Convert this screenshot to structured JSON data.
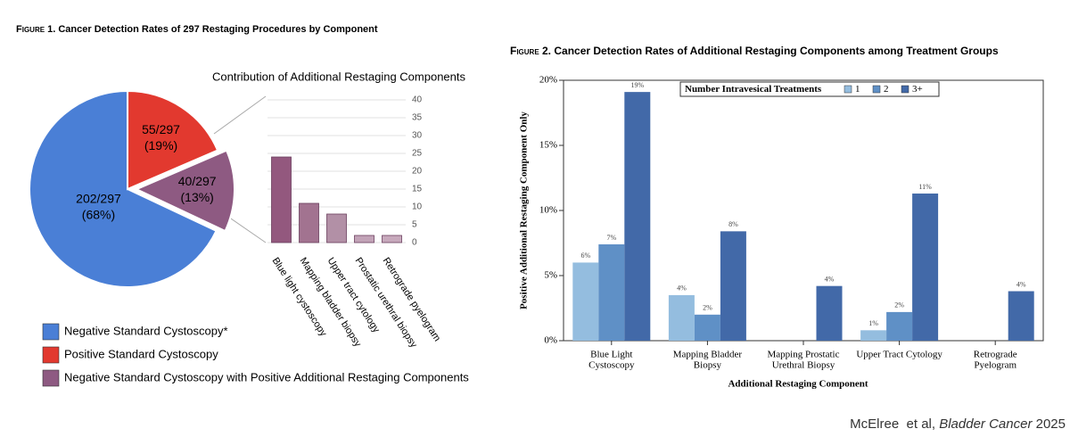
{
  "chart_data": [
    {
      "type": "pie",
      "figure_label": "Figure 1.",
      "title": "Cancer Detection Rates of 297 Restaging Procedures by Component",
      "categories": [
        "Negative Standard Cystoscopy*",
        "Positive Standard Cystoscopy",
        "Negative Standard Cystoscopy with Positive Additional Restaging Components"
      ],
      "values": [
        202,
        55,
        40
      ],
      "value_labels": [
        "202/297",
        "55/297",
        "40/297"
      ],
      "percent_labels": [
        "(68%)",
        "(19%)",
        "(13%)"
      ],
      "colors": [
        "#4a7fd6",
        "#e2392f",
        "#8e5a82"
      ]
    },
    {
      "type": "bar",
      "title": "Contribution of Additional Restaging Components",
      "categories": [
        "Blue light  cystoscopy",
        "Mapping bladder biopsy",
        "Upper tract cytology",
        "Prostatic urethral biopsy",
        "Retrograde pyelogram"
      ],
      "values": [
        24,
        11,
        8,
        2,
        2
      ],
      "colors": [
        "#93587e",
        "#a27390",
        "#b290a6",
        "#c2a3b7",
        "#c7a9bc"
      ],
      "ylim": [
        0,
        40
      ],
      "yticks": [
        0,
        5,
        10,
        15,
        20,
        25,
        30,
        35,
        40
      ],
      "grid": true
    },
    {
      "type": "grouped_bar",
      "figure_label": "Figure 2.",
      "title": "Cancer Detection Rates of Additional Restaging Components among Treatment Groups",
      "categories": [
        [
          "Blue Light",
          "Cystoscopy"
        ],
        [
          "Mapping Bladder",
          "Biopsy"
        ],
        [
          "Mapping Prostatic",
          "Urethral Biopsy"
        ],
        [
          "Upper Tract Cytology"
        ],
        [
          "Retrograde",
          "Pyelogram"
        ]
      ],
      "legend_title": "Number Intravesical Treatments",
      "series": [
        {
          "name": "1",
          "color": "#94bddf",
          "values": [
            6.0,
            3.5,
            null,
            0.8,
            null
          ],
          "value_labels": [
            "6%",
            "4%",
            null,
            "1%",
            null
          ]
        },
        {
          "name": "2",
          "color": "#5f90c6",
          "values": [
            7.4,
            2.0,
            null,
            2.2,
            null
          ],
          "value_labels": [
            "7%",
            "2%",
            null,
            "2%",
            null
          ]
        },
        {
          "name": "3+",
          "color": "#4269a8",
          "values": [
            19.1,
            8.4,
            4.2,
            11.3,
            3.8
          ],
          "value_labels": [
            "19%",
            "8%",
            "4%",
            "11%",
            "4%"
          ]
        }
      ],
      "xlabel": "Additional Restaging Component",
      "ylabel": "Positive Additional Restaging Component Only",
      "ylim": [
        0,
        20
      ],
      "yticks": [
        {
          "value": 0,
          "label": "0%"
        },
        {
          "value": 5,
          "label": "5%"
        },
        {
          "value": 10,
          "label": "10%"
        },
        {
          "value": 15,
          "label": "15%"
        },
        {
          "value": 20,
          "label": "20%"
        }
      ]
    }
  ],
  "footer": [
    "McElree  et al, ",
    "Bladder Cancer",
    " 2025"
  ]
}
